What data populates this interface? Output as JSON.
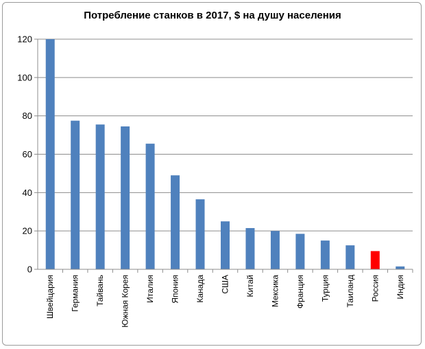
{
  "chart_data": {
    "type": "bar",
    "title": "Потребление станков в 2017, $ на душу населения",
    "xlabel": "",
    "ylabel": "",
    "categories": [
      "Швейцария",
      "Германия",
      "Тайвань",
      "Южная Корея",
      "Италия",
      "Япония",
      "Канада",
      "США",
      "Китай",
      "Мексика",
      "Франция",
      "Турция",
      "Таиланд",
      "Россия",
      "Индия"
    ],
    "values": [
      120,
      77.5,
      75.5,
      74.5,
      65.5,
      49,
      36.5,
      25,
      21.5,
      20,
      18.5,
      15,
      12.5,
      9.5,
      1.5
    ],
    "bar_colors": [
      "#4f81bd",
      "#4f81bd",
      "#4f81bd",
      "#4f81bd",
      "#4f81bd",
      "#4f81bd",
      "#4f81bd",
      "#4f81bd",
      "#4f81bd",
      "#4f81bd",
      "#4f81bd",
      "#4f81bd",
      "#4f81bd",
      "#ff0000",
      "#4f81bd"
    ],
    "ylim": [
      0,
      120
    ],
    "yticks": [
      0,
      20,
      40,
      60,
      80,
      100,
      120
    ],
    "grid": true,
    "legend": "none"
  }
}
